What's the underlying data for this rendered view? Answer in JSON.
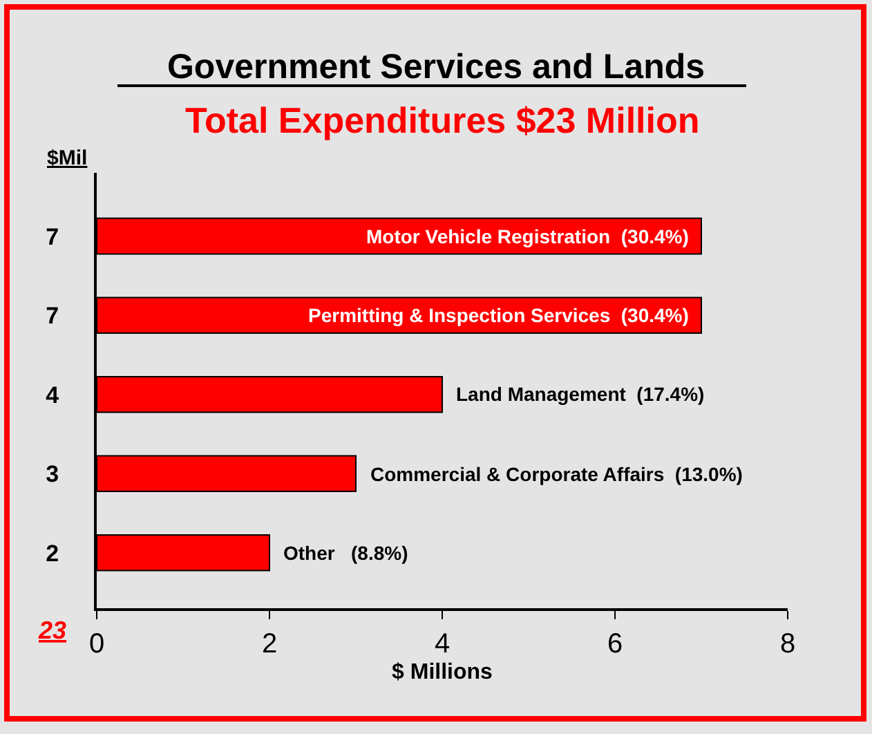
{
  "chart_data": {
    "type": "bar",
    "orientation": "horizontal",
    "title": "Government Services and Lands",
    "subtitle": "Total Expenditures $23 Million",
    "xlabel": "$ Millions",
    "categories": [
      "Motor Vehicle Registration  (30.4%)",
      "Permitting & Inspection Services  (30.4%)",
      "Land Management  (17.4%)",
      "Commercial & Corporate Affairs  (13.0%)",
      "Other   (8.8%)"
    ],
    "values": [
      7,
      7,
      4,
      3,
      2
    ],
    "value_labels": [
      "7",
      "7",
      "4",
      "3",
      "2"
    ],
    "color": "#ff0000",
    "xlim": [
      0,
      8
    ],
    "xticks": [
      0,
      2,
      4,
      6,
      8
    ],
    "grid": false,
    "legend": false,
    "annotations": [
      "$Mil",
      "23"
    ]
  }
}
